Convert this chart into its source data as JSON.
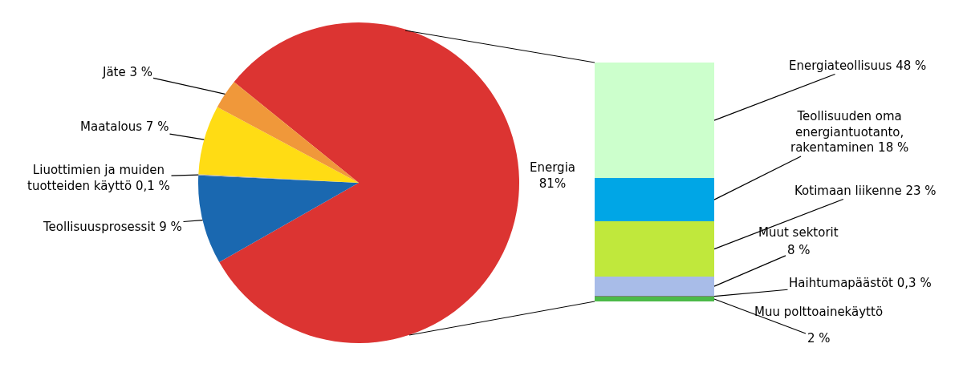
{
  "chart_data": [
    {
      "type": "pie",
      "categories": [
        "Energia",
        "Teollisuusprosessit",
        "Liuottimien ja muiden\ntuotteiden käyttö",
        "Maatalous",
        "Jäte"
      ],
      "values": [
        81,
        9,
        0.1,
        7,
        3
      ],
      "value_labels": [
        "81%",
        "9 %",
        "0,1 %",
        "7 %",
        "3 %"
      ],
      "colors": [
        "#dc3432",
        "#1a68b0",
        "#a6a6a6",
        "#ffdc14",
        "#f0983a"
      ]
    },
    {
      "type": "bar",
      "stacked": true,
      "categories": [
        null
      ],
      "series": [
        {
          "name": "Muu polttoainekäyttö",
          "color": "#4cba48",
          "values": [
            2
          ],
          "value_labels": [
            "2 %"
          ]
        },
        {
          "name": "Haihtumapäästöt",
          "color": "#7f7f7f",
          "values": [
            0.3
          ],
          "value_labels": [
            "0,3 %"
          ]
        },
        {
          "name": "Muut sektorit",
          "color": "#a8bce8",
          "values": [
            8
          ],
          "value_labels": [
            "8 %"
          ]
        },
        {
          "name": "Kotimaan liikenne",
          "color": "#c0e83c",
          "values": [
            23
          ],
          "value_labels": [
            "23 %"
          ]
        },
        {
          "name": "Teollisuuden oma\nenergiantuotanto,\nrakentaminen",
          "color": "#00a6e6",
          "values": [
            18
          ],
          "value_labels": [
            "18 %"
          ]
        },
        {
          "name": "Energiateollisuus",
          "color": "#ccffcc",
          "values": [
            48
          ],
          "value_labels": [
            "48 %"
          ]
        }
      ]
    }
  ]
}
